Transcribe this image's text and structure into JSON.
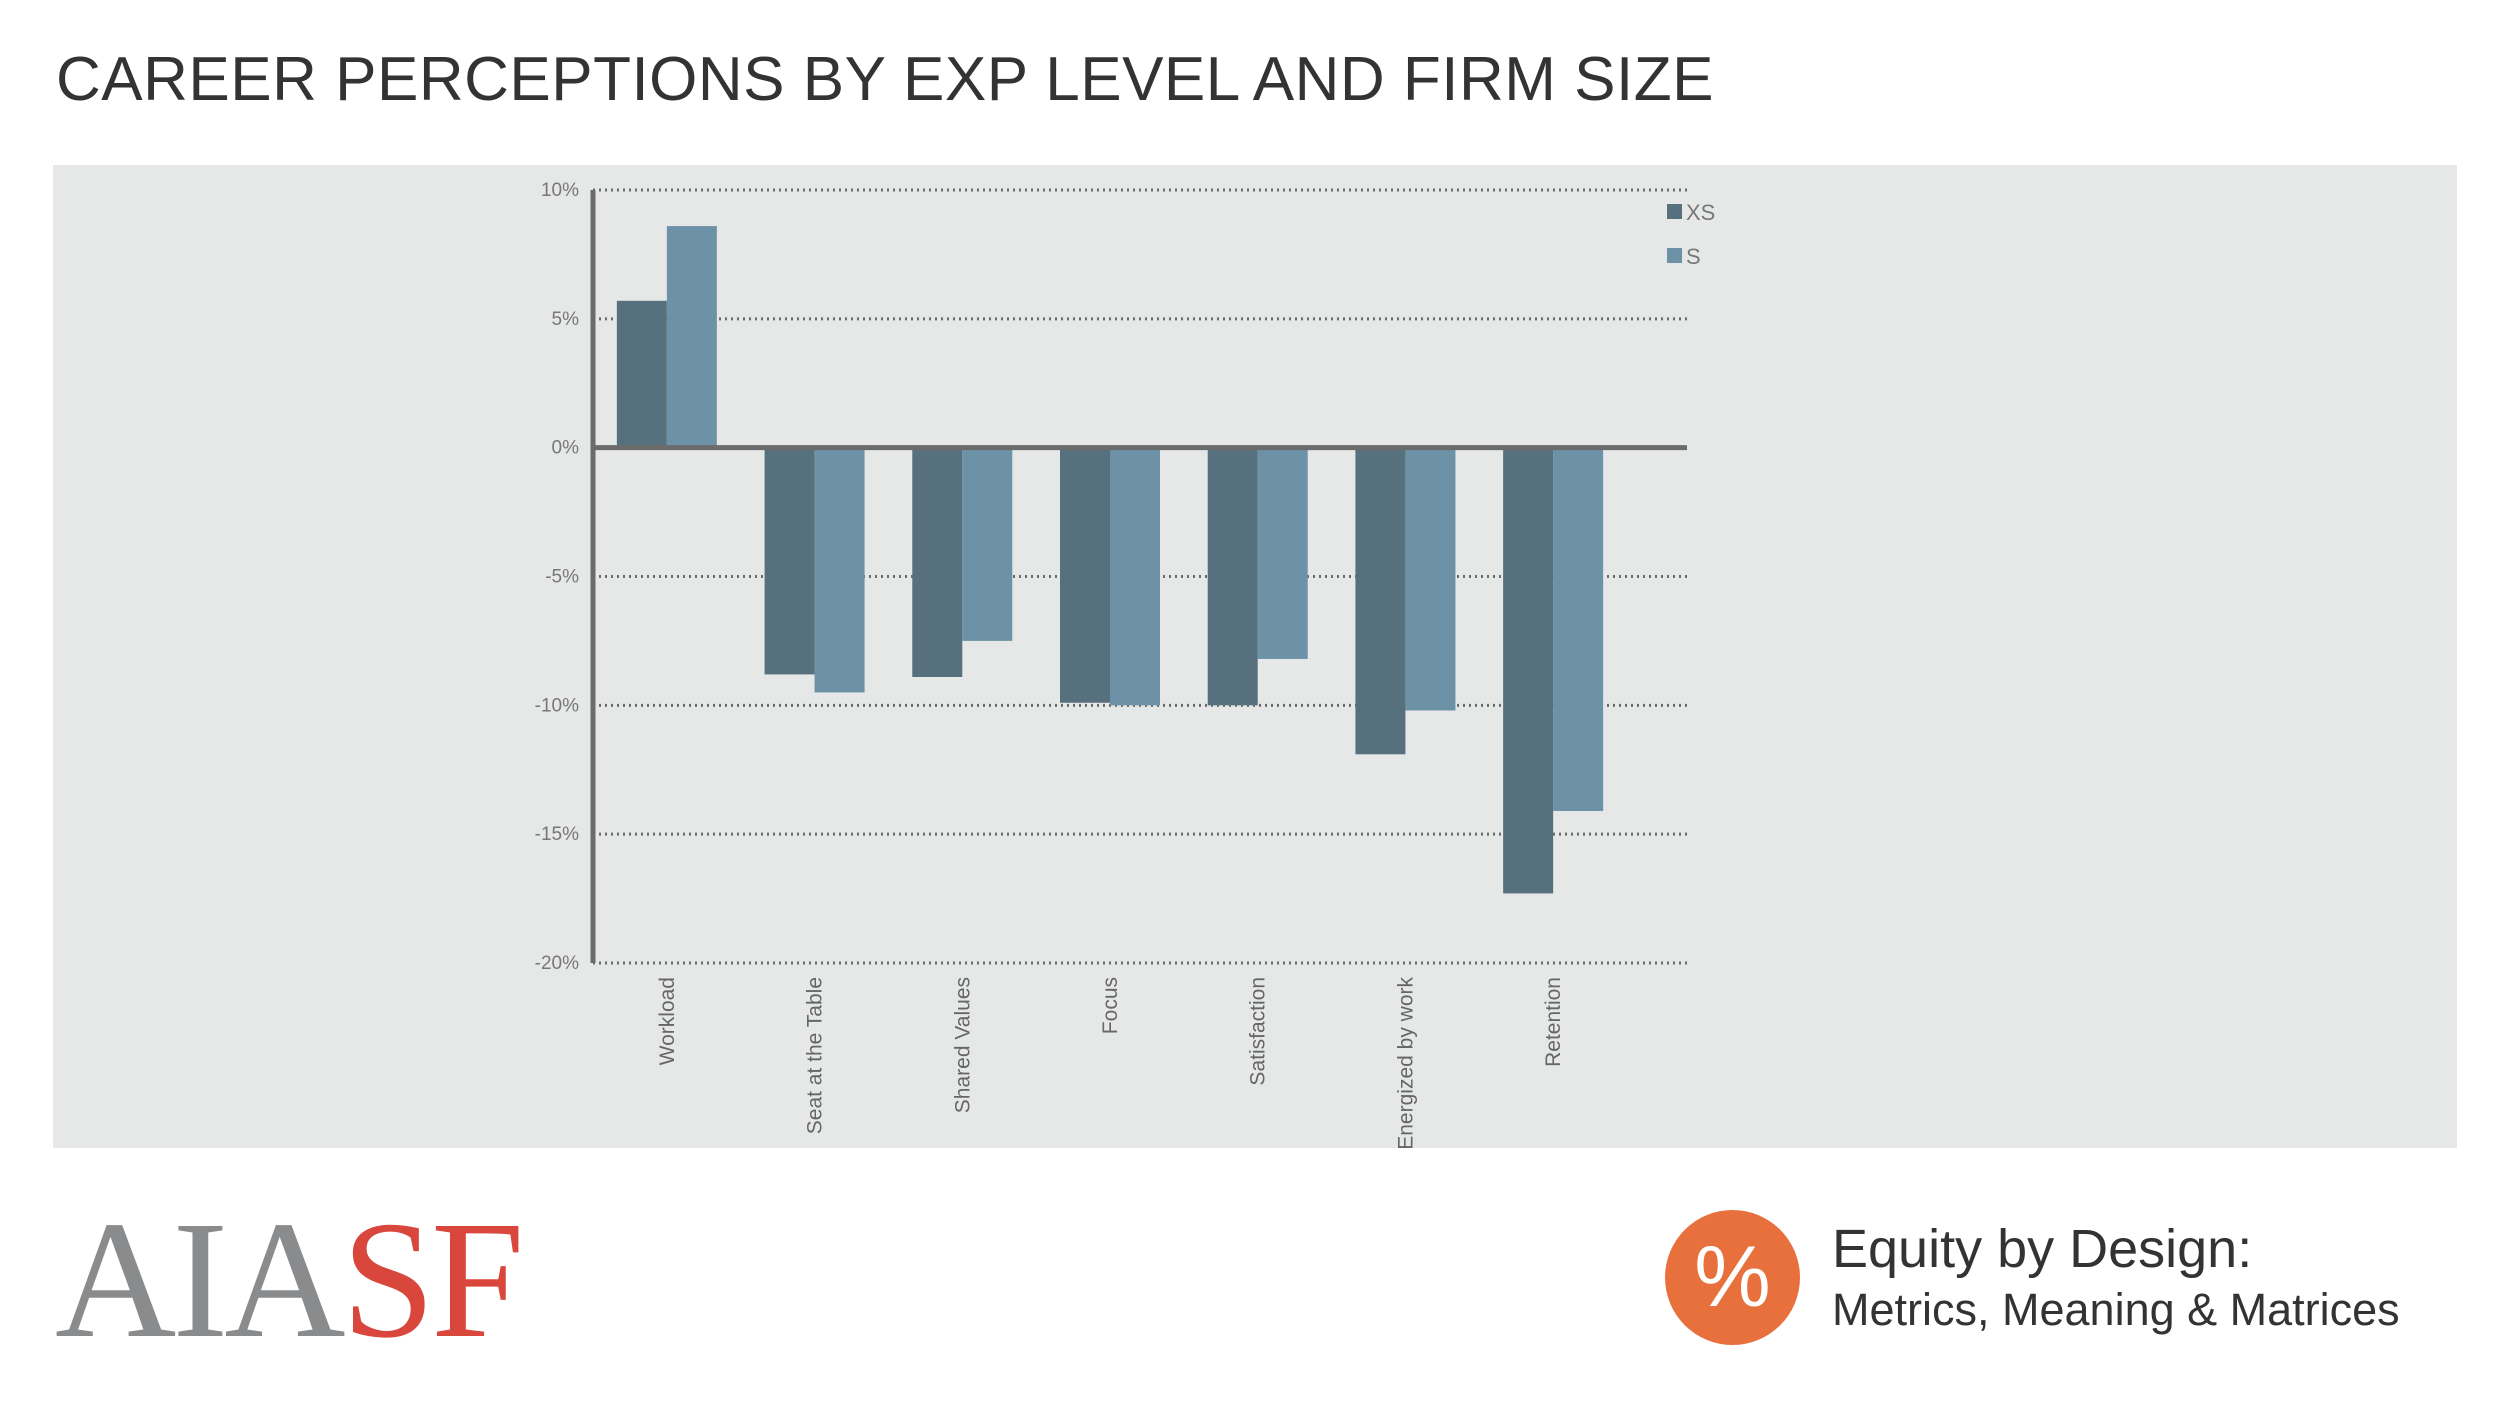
{
  "title": "CAREER PERCEPTIONS BY EXP LEVEL AND FIRM SIZE",
  "chart_data": {
    "type": "bar",
    "categories": [
      "Workload",
      "Seat at the Table",
      "Shared Values",
      "Focus",
      "Satisfaction",
      "Energized by work",
      "Retention"
    ],
    "series": [
      {
        "name": "XS",
        "values": [
          5.7,
          -8.8,
          -8.9,
          -9.9,
          -10.0,
          -11.9,
          -17.3
        ],
        "color": "#56707e"
      },
      {
        "name": "S",
        "values": [
          8.6,
          -9.5,
          -7.5,
          -10.0,
          -8.2,
          -10.2,
          -14.1
        ],
        "color": "#6d92a7"
      }
    ],
    "yticks": [
      "10%",
      "5%",
      "0%",
      "-5%",
      "-10%",
      "-15%",
      "-20%"
    ],
    "ytick_values": [
      10,
      5,
      0,
      -5,
      -10,
      -15,
      -20
    ],
    "ylim": [
      -20,
      10
    ],
    "grid": "dotted horizontal",
    "legend": "top-right",
    "xlabel": "",
    "ylabel": ""
  },
  "footer": {
    "logo_aia": "AIA",
    "logo_sf": "SF",
    "badge_symbol": "%",
    "equity_title": "Equity by Design:",
    "equity_subtitle": "Metrics, Meaning & Matrices"
  },
  "colors": {
    "panel_bg": "#e6e8e7",
    "axis": "#6b6b6b",
    "badge": "#e8703d",
    "logo_red": "#d9473c",
    "logo_gray": "#8a8b8d"
  }
}
